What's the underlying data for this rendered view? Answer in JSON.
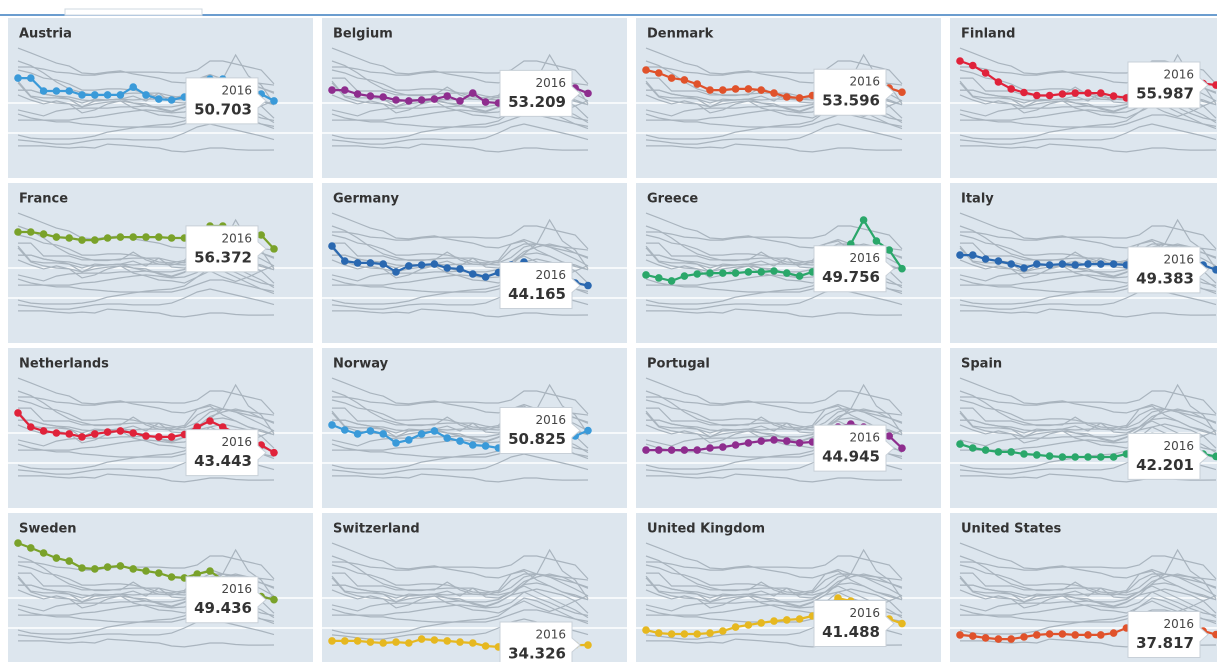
{
  "chart_data": {
    "type": "line",
    "categories": [
      null,
      null,
      null,
      null,
      null,
      null,
      null,
      null,
      null,
      null,
      null,
      null,
      null,
      null,
      null,
      null,
      null,
      null,
      null,
      null,
      "2016"
    ],
    "ylim": [
      25,
      75
    ],
    "yticks": [
      40,
      50
    ],
    "grid": true,
    "series": [
      {
        "name": "Austria",
        "color": "#3a9ad9",
        "values": [
          58.3,
          58.3,
          54,
          54,
          54,
          52.7,
          52.7,
          52.7,
          52.7,
          55.3,
          52.7,
          51.3,
          51,
          52,
          56,
          58,
          58,
          57,
          55,
          53,
          50.703
        ]
      },
      {
        "name": "Belgium",
        "color": "#8e2d8e",
        "values": [
          54.3,
          54.3,
          53,
          52.3,
          52,
          51,
          50.7,
          51,
          51.3,
          52.3,
          50.7,
          53.3,
          50.3,
          50,
          52,
          55.5,
          57,
          58,
          57,
          55,
          53.209
        ]
      },
      {
        "name": "Denmark",
        "color": "#e0522b",
        "values": [
          61,
          60,
          58.3,
          57.7,
          56.3,
          54.3,
          54.3,
          54.7,
          54.7,
          54.3,
          53.3,
          52,
          51.7,
          52.5,
          58,
          59.5,
          58,
          57,
          56,
          55,
          53.596
        ]
      },
      {
        "name": "Finland",
        "color": "#e0223a",
        "values": [
          64,
          62.5,
          60,
          57,
          54.7,
          53.5,
          52.5,
          52.5,
          53,
          53.3,
          53.3,
          53.3,
          52.3,
          51.7,
          53.5,
          57,
          58,
          57.5,
          57,
          56.5,
          55.987
        ]
      },
      {
        "name": "France",
        "color": "#7aa22a",
        "values": [
          62,
          62,
          61.3,
          60.3,
          60,
          59.3,
          59.3,
          60,
          60.3,
          60.3,
          60.3,
          60.3,
          60,
          60,
          61,
          64,
          64,
          63,
          62,
          61,
          56.372
        ]
      },
      {
        "name": "Germany",
        "color": "#2a68b0",
        "values": [
          57.3,
          52.3,
          51.7,
          51.7,
          51.3,
          48.7,
          50.7,
          51,
          51.3,
          50,
          49.7,
          48,
          47,
          48.5,
          51,
          52,
          50,
          48.5,
          46.5,
          45,
          44.165
        ]
      },
      {
        "name": "Greece",
        "color": "#2aa76a",
        "values": [
          47.7,
          46.7,
          45.7,
          47.3,
          48,
          48.3,
          48.3,
          48.3,
          48.7,
          48.7,
          49,
          48.3,
          47.3,
          48.7,
          51,
          54.7,
          58,
          66,
          59,
          56,
          49.756
        ]
      },
      {
        "name": "Italy",
        "color": "#2a68b0",
        "values": [
          54.3,
          54.3,
          53,
          52.3,
          51.3,
          50,
          51.3,
          51,
          51.3,
          51,
          51.3,
          51.3,
          51.3,
          51,
          52,
          54.5,
          55,
          54,
          52,
          51,
          49.383
        ]
      },
      {
        "name": "Netherlands",
        "color": "#e0223a",
        "values": [
          56.7,
          52,
          50.7,
          50,
          49.7,
          48.7,
          49.7,
          50.3,
          50.7,
          50,
          49,
          48.7,
          48.7,
          49.5,
          52,
          54,
          52,
          50,
          48,
          46,
          43.443
        ]
      },
      {
        "name": "Norway",
        "color": "#3a9ad9",
        "values": [
          52.7,
          51,
          49.7,
          50.7,
          49.7,
          46.7,
          47.7,
          49.7,
          50.7,
          48.3,
          47.3,
          46,
          45.7,
          45,
          47,
          49,
          47,
          45.5,
          47,
          49,
          50.825
        ]
      },
      {
        "name": "Portugal",
        "color": "#8e2d8e",
        "values": [
          44.3,
          44.3,
          44.3,
          44.3,
          44.3,
          45,
          45.3,
          46,
          46.7,
          47.3,
          47.7,
          47.3,
          46.7,
          47,
          48.5,
          52,
          53,
          52,
          51,
          49,
          44.945
        ]
      },
      {
        "name": "Spain",
        "color": "#2aa76a",
        "values": [
          46.3,
          45,
          44.3,
          43.7,
          43.7,
          43,
          42.7,
          42.3,
          42,
          42,
          42,
          42,
          42,
          43,
          44.5,
          46,
          46,
          45,
          44,
          43,
          42.201
        ]
      },
      {
        "name": "Sweden",
        "color": "#7aa22a",
        "values": [
          68.3,
          66.7,
          65,
          63.3,
          62.3,
          60,
          59.7,
          60.3,
          60.7,
          59.7,
          59,
          58.3,
          57,
          56.7,
          58,
          59,
          56,
          54,
          52,
          50.5,
          49.436
        ]
      },
      {
        "name": "Switzerland",
        "color": "#e6b820",
        "values": [
          35.7,
          35.7,
          35.7,
          35.3,
          35,
          35.3,
          35,
          36.3,
          36,
          35.7,
          35.3,
          35,
          34,
          33.7,
          34.3,
          35,
          35,
          34.5,
          34.3,
          34.3,
          34.326
        ]
      },
      {
        "name": "United Kingdom",
        "color": "#e6b820",
        "values": [
          39.3,
          38.3,
          38,
          38,
          38,
          38.3,
          39,
          40.3,
          41,
          41.7,
          42.3,
          42.7,
          43,
          44,
          47,
          50,
          49,
          47,
          45,
          43,
          41.488
        ]
      },
      {
        "name": "United States",
        "color": "#e0522b",
        "values": [
          37.7,
          37.3,
          36.7,
          36.3,
          36.3,
          37,
          37.7,
          38,
          38,
          37.7,
          37.7,
          37.7,
          38.3,
          40,
          42,
          43,
          42,
          41,
          40,
          39,
          37.817
        ]
      }
    ]
  }
}
